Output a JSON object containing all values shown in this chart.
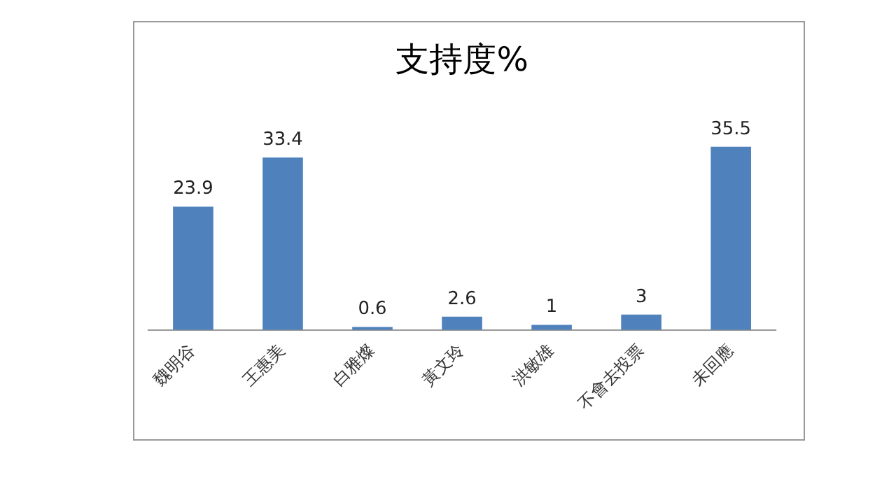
{
  "chart_data": {
    "type": "bar",
    "title": "支持度%",
    "categories": [
      "魏明谷",
      "王惠美",
      "白雅燦",
      "黃文玲",
      "洪敏雄",
      "不會去投票",
      "未回應"
    ],
    "values": [
      23.9,
      33.4,
      0.6,
      2.6,
      1,
      3,
      35.5
    ],
    "color": "#4f81bd",
    "data_labels": true,
    "grid": false,
    "legend": false
  }
}
